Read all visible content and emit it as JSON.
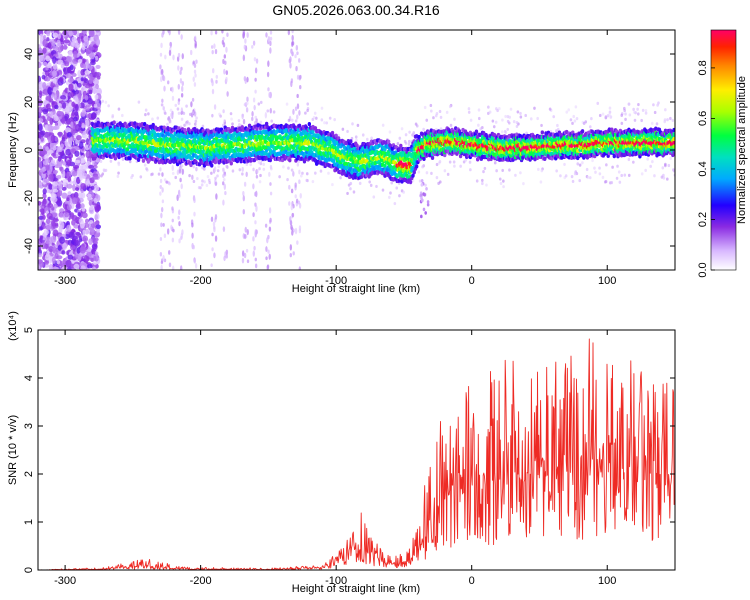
{
  "title": "GN05.2026.063.00.34.R16",
  "chart_data": [
    {
      "type": "heatmap",
      "name": "spectrogram",
      "xlabel": "Height of straight line (km)",
      "ylabel": "Frequency (Hz)",
      "xlim": [
        -320,
        150
      ],
      "ylim": [
        -50,
        50
      ],
      "xticks": [
        -300,
        -200,
        -100,
        0,
        100
      ],
      "yticks": [
        -40,
        -20,
        0,
        20,
        40
      ],
      "ridge": {
        "x": [
          -280,
          -260,
          -240,
          -220,
          -200,
          -180,
          -160,
          -140,
          -120,
          -105,
          -95,
          -85,
          -75,
          -65,
          -55,
          -45,
          -40,
          -35,
          -25,
          -15,
          0,
          20,
          40,
          60,
          80,
          100,
          120,
          150
        ],
        "freq": [
          4,
          4,
          3,
          2,
          1,
          2,
          3,
          3,
          3,
          0,
          -3,
          -5,
          -4,
          -3,
          -6,
          -6,
          0,
          2,
          3,
          4,
          2,
          1,
          1,
          2,
          2,
          3,
          3,
          3
        ]
      },
      "colorbar": {
        "label": "Normalized spectral amplitude",
        "range": [
          0.0,
          0.95
        ],
        "ticks": [
          0.0,
          0.2,
          0.4,
          0.6,
          0.8
        ]
      }
    },
    {
      "type": "line",
      "name": "snr",
      "xlabel": "Height of straight line (km)",
      "ylabel": "SNR (10 * v/v)",
      "scale_label": "(x10⁴)",
      "xlim": [
        -320,
        150
      ],
      "ylim": [
        0,
        5
      ],
      "xticks": [
        -300,
        -200,
        -100,
        0,
        100
      ],
      "yticks": [
        0,
        1,
        2,
        3,
        4,
        5
      ],
      "color": "#ee2a24",
      "envelope": {
        "x": [
          -320,
          -270,
          -255,
          -240,
          -225,
          -210,
          -150,
          -110,
          -95,
          -88,
          -82,
          -75,
          -65,
          -55,
          -45,
          -38,
          -33,
          -28,
          -24,
          -20,
          -15,
          -5,
          0,
          10,
          30,
          50,
          70,
          90,
          110,
          130,
          150
        ],
        "base": [
          0.0,
          0.02,
          0.05,
          0.08,
          0.04,
          0.02,
          0.01,
          0.05,
          0.25,
          0.45,
          0.5,
          0.35,
          0.15,
          0.1,
          0.2,
          0.45,
          0.8,
          1.0,
          1.4,
          1.5,
          1.6,
          1.6,
          1.7,
          1.7,
          1.8,
          1.9,
          2.0,
          2.0,
          1.9,
          1.9,
          1.8
        ],
        "peak": [
          0.0,
          0.06,
          0.15,
          0.25,
          0.15,
          0.06,
          0.04,
          0.1,
          0.5,
          0.9,
          1.35,
          0.8,
          0.35,
          0.3,
          0.55,
          1.2,
          2.2,
          2.8,
          3.3,
          3.3,
          3.0,
          3.9,
          4.0,
          4.1,
          4.5,
          4.3,
          4.6,
          4.95,
          4.5,
          4.3,
          4.0
        ]
      }
    }
  ]
}
